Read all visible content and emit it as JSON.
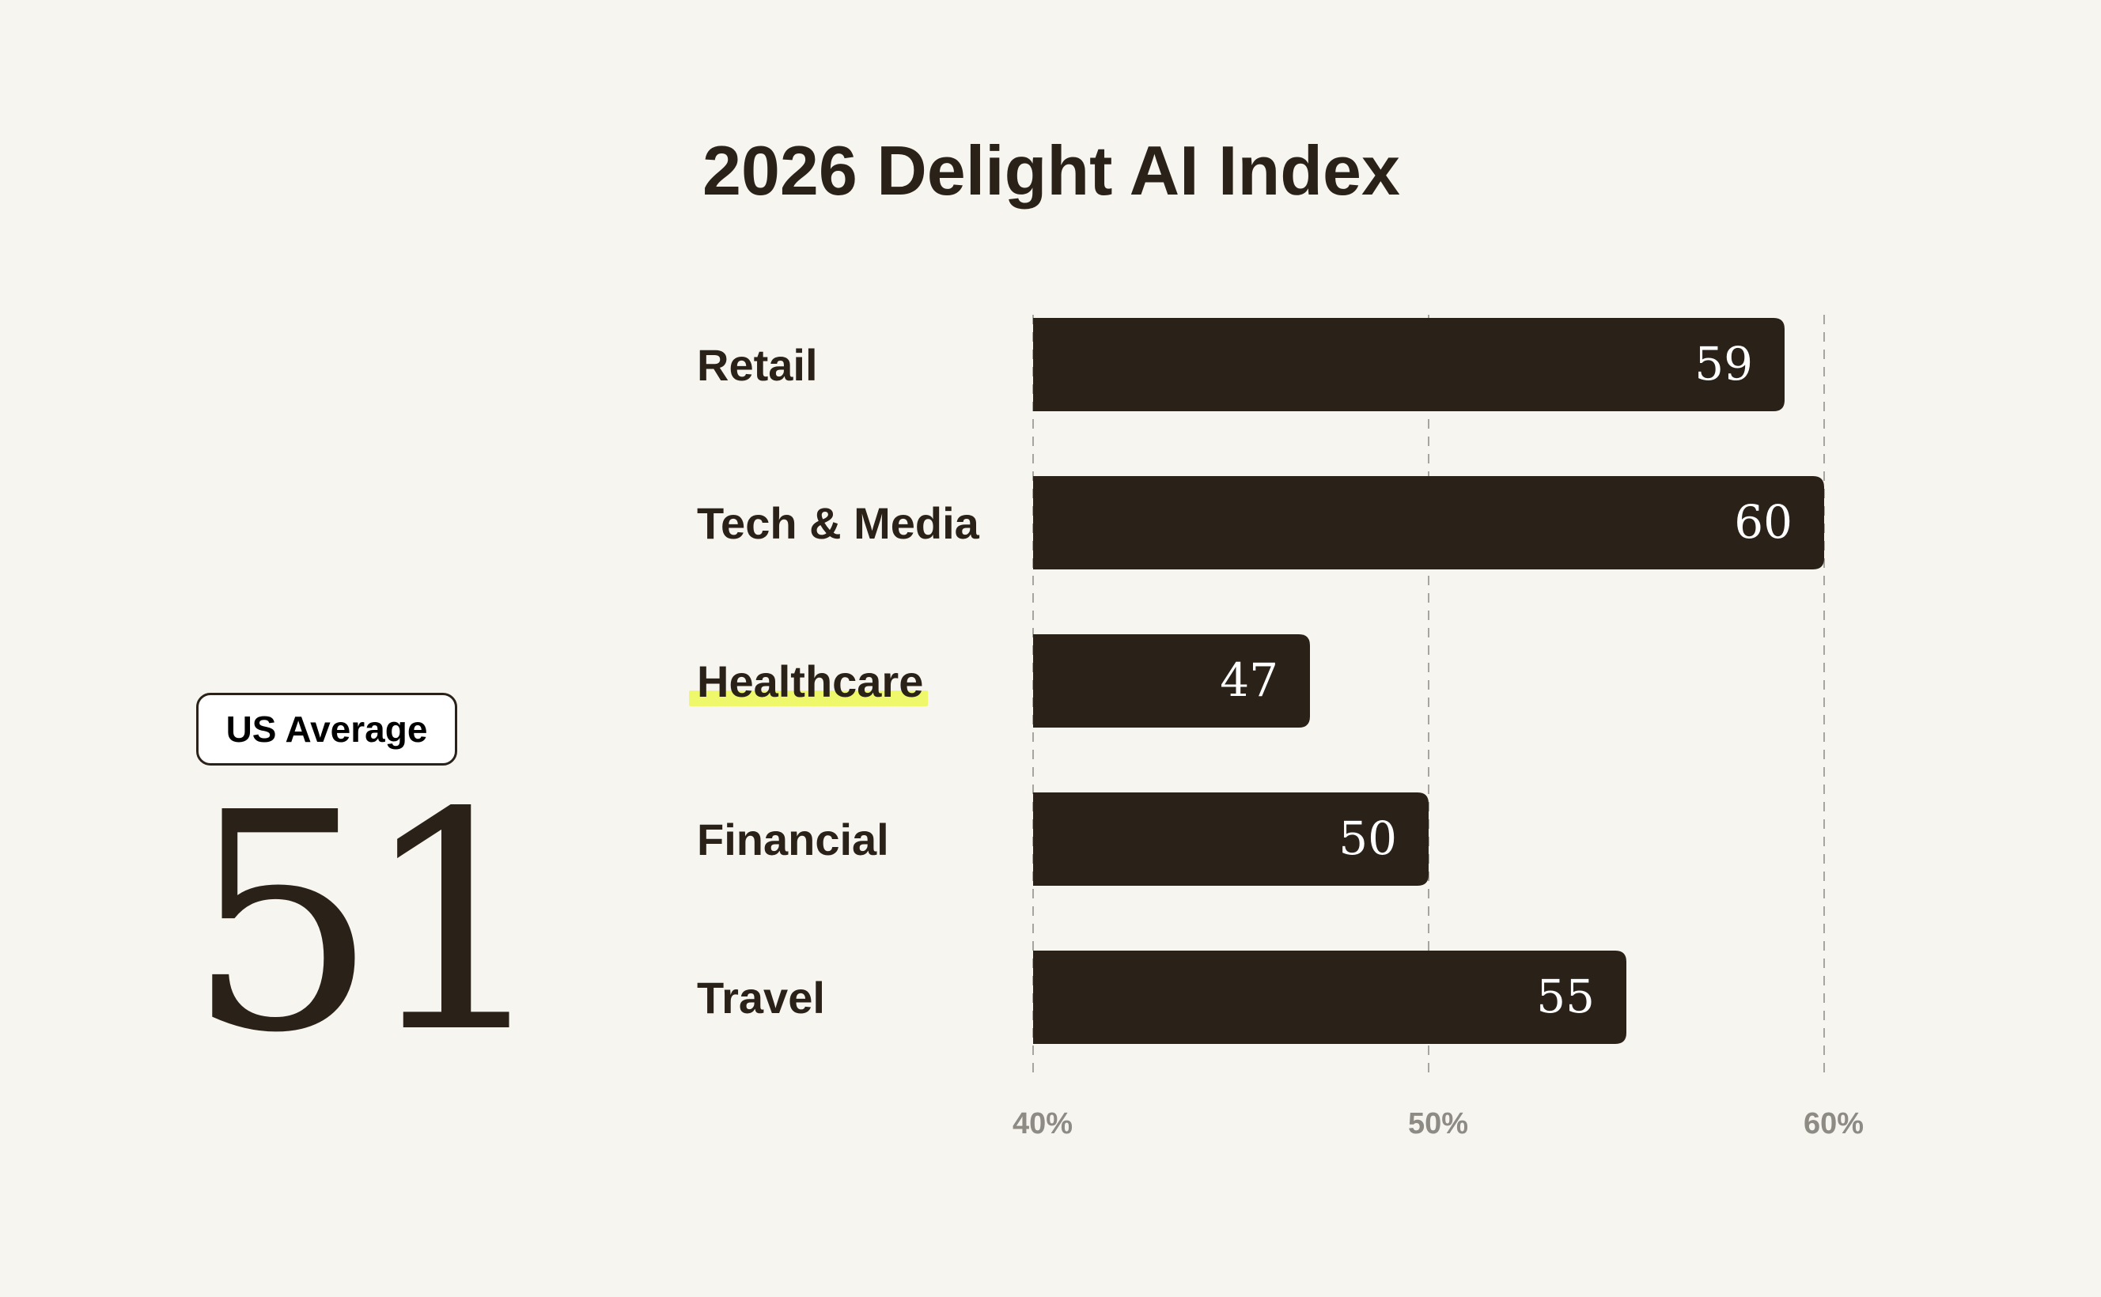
{
  "colors": {
    "background": "#f6f5f0",
    "bar": "#2a2218",
    "text": "#2a2218",
    "value_text": "#ffffff",
    "highlight_text": "#e7f06a",
    "highlight_marker": "#eef86a",
    "tick_text": "#8e8b85",
    "grid": "#a8a59f"
  },
  "summary": {
    "badge_label": "US Average",
    "value": "51"
  },
  "chart_data": {
    "type": "bar",
    "orientation": "horizontal",
    "title": "2026 Delight AI Index",
    "categories": [
      "Retail",
      "Tech & Media",
      "Healthcare",
      "Financial",
      "Travel"
    ],
    "values": [
      59,
      60,
      47,
      50,
      55
    ],
    "highlighted_category": "Healthcare",
    "xlim": [
      40,
      60
    ],
    "x_ticks": [
      40,
      50,
      60
    ],
    "x_tick_labels": [
      "40%",
      "50%",
      "60%"
    ],
    "grid": true,
    "xlabel": "",
    "ylabel": ""
  }
}
